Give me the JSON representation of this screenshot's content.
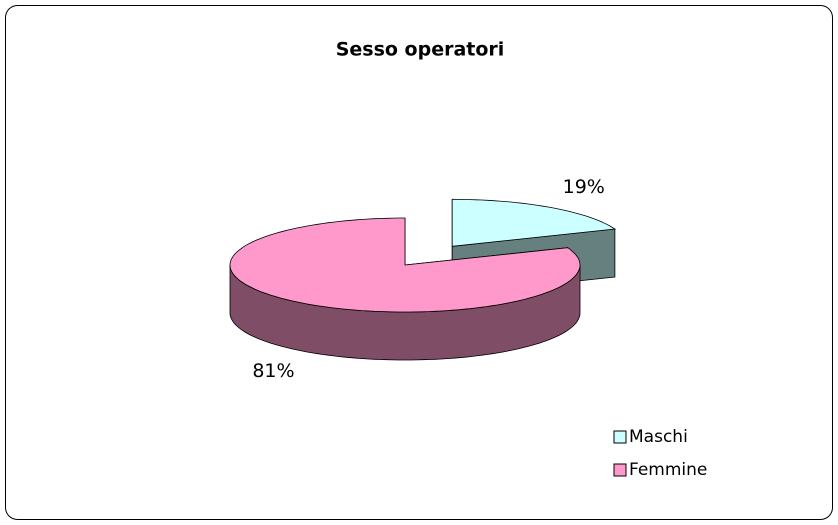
{
  "chart_data": {
    "type": "pie",
    "title": "Sesso operatori",
    "categories": [
      "Maschi",
      "Femmine"
    ],
    "values": [
      19,
      81
    ],
    "value_labels": [
      "19%",
      "81%"
    ],
    "colors": [
      "#CCFFFF",
      "#FF99CC"
    ],
    "explode": [
      true,
      false
    ],
    "legend": "bottom-right"
  }
}
